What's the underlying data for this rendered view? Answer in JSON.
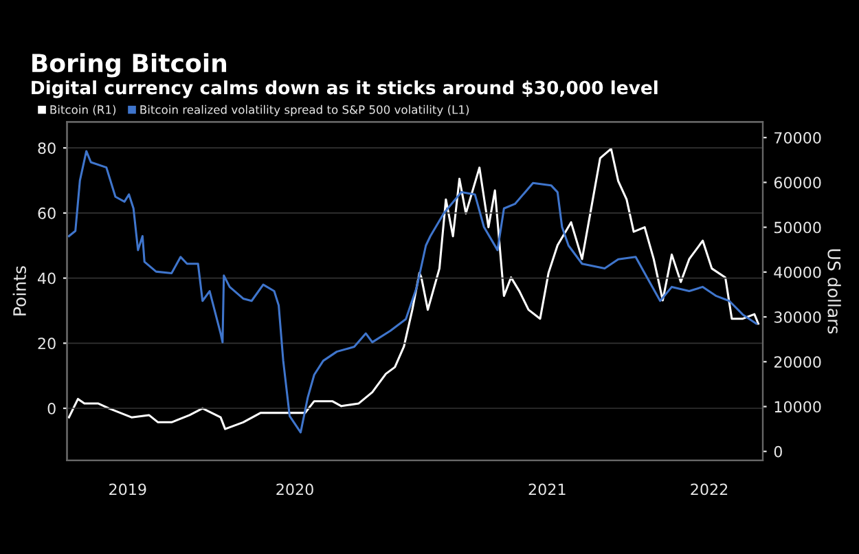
{
  "chart_data": {
    "type": "line",
    "title": "Boring Bitcoin",
    "subtitle": "Digital currency calms down as it sticks around $30,000 level",
    "ylabel": "Points",
    "y2label": "US dollars",
    "xlim": [
      "2019-07-10",
      "2022-06-22"
    ],
    "xticks": [
      {
        "value": "2019-10-12",
        "label": "2019"
      },
      {
        "value": "2020-06-27",
        "label": "2020"
      },
      {
        "value": "2021-07-23",
        "label": "2021"
      },
      {
        "value": "2022-03-31",
        "label": "2022"
      }
    ],
    "ylim": [
      -16,
      88
    ],
    "yticks": [
      0,
      20,
      40,
      60,
      80
    ],
    "y2lim": [
      -2000,
      73500
    ],
    "y2ticks": [
      0,
      10000,
      20000,
      30000,
      40000,
      50000,
      60000,
      70000
    ],
    "grid": "y",
    "legend": "top left",
    "line_style": "solid",
    "marker": "none",
    "series": [
      {
        "name": "Bitcoin (R1)",
        "color": "#ffffff",
        "axis": "y2",
        "x": [
          "2019-07-13",
          "2019-07-27",
          "2019-08-06",
          "2019-08-27",
          "2019-09-13",
          "2019-10-18",
          "2019-11-14",
          "2019-11-28",
          "2019-12-19",
          "2020-01-16",
          "2020-02-05",
          "2020-03-04",
          "2020-03-11",
          "2020-04-08",
          "2020-05-05",
          "2020-06-16",
          "2020-07-13",
          "2020-07-27",
          "2020-08-24",
          "2020-09-07",
          "2020-10-04",
          "2020-10-25",
          "2020-11-15",
          "2020-11-29",
          "2020-12-13",
          "2020-12-26",
          "2021-01-06",
          "2021-01-09",
          "2021-01-19",
          "2021-02-06",
          "2021-02-16",
          "2021-02-27",
          "2021-03-09",
          "2021-03-19",
          "2021-04-09",
          "2021-04-23",
          "2021-05-03",
          "2021-05-17",
          "2021-05-28",
          "2021-06-10",
          "2021-06-24",
          "2021-07-12",
          "2021-07-25",
          "2021-08-08",
          "2021-08-29",
          "2021-09-15",
          "2021-09-29",
          "2021-10-13",
          "2021-10-30",
          "2021-11-10",
          "2021-11-23",
          "2021-12-04",
          "2021-12-21",
          "2022-01-04",
          "2022-01-18",
          "2022-02-01",
          "2022-02-15",
          "2022-02-28",
          "2022-03-21",
          "2022-04-04",
          "2022-04-25",
          "2022-05-05",
          "2022-05-22",
          "2022-06-09",
          "2022-06-15"
        ],
        "values": [
          7600,
          11700,
          10700,
          10700,
          9600,
          7600,
          8100,
          6500,
          6500,
          8100,
          9600,
          7600,
          5000,
          6500,
          8600,
          8600,
          8600,
          11200,
          11200,
          10100,
          10700,
          13200,
          17300,
          18800,
          23400,
          31600,
          39800,
          38800,
          31600,
          40800,
          56200,
          48000,
          60800,
          53100,
          63300,
          50000,
          58200,
          34700,
          38800,
          35700,
          31600,
          29600,
          39800,
          46000,
          51100,
          42900,
          54100,
          65400,
          67500,
          60300,
          56200,
          49000,
          50000,
          42900,
          33700,
          43900,
          37800,
          42900,
          47000,
          40800,
          38800,
          29600,
          29600,
          30600,
          28500
        ]
      },
      {
        "name": "Bitcoin realized volatility spread to S&P 500 volatility (L1)",
        "color": "#3f75cc",
        "x": [
          "2019-07-13",
          "2019-07-23",
          "2019-07-30",
          "2019-08-09",
          "2019-08-16",
          "2019-09-09",
          "2019-09-23",
          "2019-10-07",
          "2019-10-14",
          "2019-10-21",
          "2019-10-28",
          "2019-11-04",
          "2019-11-07",
          "2019-11-25",
          "2019-12-19",
          "2020-01-02",
          "2020-01-12",
          "2020-01-29",
          "2020-02-05",
          "2020-02-16",
          "2020-03-04",
          "2020-03-07",
          "2020-03-09",
          "2020-03-18",
          "2020-04-08",
          "2020-04-21",
          "2020-05-09",
          "2020-05-26",
          "2020-06-02",
          "2020-06-09",
          "2020-06-19",
          "2020-07-06",
          "2020-07-17",
          "2020-07-27",
          "2020-08-10",
          "2020-08-31",
          "2020-09-27",
          "2020-10-15",
          "2020-10-25",
          "2020-11-22",
          "2020-12-16",
          "2021-01-02",
          "2021-01-16",
          "2021-01-23",
          "2021-02-13",
          "2021-03-12",
          "2021-04-02",
          "2021-04-16",
          "2021-05-07",
          "2021-05-17",
          "2021-06-03",
          "2021-07-01",
          "2021-07-29",
          "2021-08-08",
          "2021-08-15",
          "2021-08-25",
          "2021-09-15",
          "2021-10-20",
          "2021-11-10",
          "2021-12-07",
          "2021-12-25",
          "2022-01-14",
          "2022-02-01",
          "2022-02-28",
          "2022-03-21",
          "2022-04-11",
          "2022-05-01",
          "2022-05-22",
          "2022-06-12"
        ],
        "values": [
          52.9,
          54.5,
          70,
          79,
          75.6,
          74,
          65,
          63.5,
          65.7,
          61.4,
          48.6,
          52.9,
          45,
          42,
          41.5,
          46.5,
          44.4,
          44.4,
          33,
          36,
          23,
          20.3,
          40.8,
          37.3,
          33.7,
          33,
          38,
          36,
          31.6,
          14.6,
          -2.4,
          -7.4,
          3.3,
          10.3,
          14.6,
          17.4,
          18.9,
          23,
          20.3,
          23.8,
          27.4,
          37.3,
          50,
          52.9,
          60,
          66.4,
          65.7,
          55.7,
          48.6,
          61.4,
          62.8,
          69.2,
          68.5,
          66.4,
          55.7,
          50,
          44.4,
          43,
          45.8,
          46.5,
          40.1,
          33,
          37.3,
          36,
          37.3,
          34.5,
          33,
          28.8,
          26
        ]
      }
    ]
  }
}
